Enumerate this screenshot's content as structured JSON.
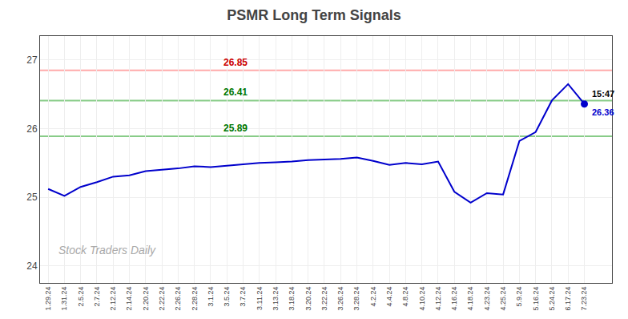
{
  "chart_data": {
    "type": "line",
    "title": "PSMR Long Term Signals",
    "categories": [
      "1.29.24",
      "1.31.24",
      "2.5.24",
      "2.7.24",
      "2.12.24",
      "2.14.24",
      "2.20.24",
      "2.22.24",
      "2.26.24",
      "2.28.24",
      "3.1.24",
      "3.5.24",
      "3.7.24",
      "3.11.24",
      "3.13.24",
      "3.18.24",
      "3.20.24",
      "3.22.24",
      "3.26.24",
      "3.28.24",
      "4.2.24",
      "4.4.24",
      "4.8.24",
      "4.10.24",
      "4.12.24",
      "4.16.24",
      "4.18.24",
      "4.23.24",
      "4.25.24",
      "5.9.24",
      "5.16.24",
      "5.24.24",
      "6.17.24",
      "7.23.24"
    ],
    "values": [
      25.12,
      25.02,
      25.15,
      25.22,
      25.3,
      25.32,
      25.38,
      25.4,
      25.42,
      25.45,
      25.44,
      25.46,
      25.48,
      25.5,
      25.51,
      25.52,
      25.54,
      25.55,
      25.56,
      25.58,
      25.53,
      25.47,
      25.5,
      25.48,
      25.52,
      25.08,
      24.92,
      25.06,
      25.04,
      25.82,
      25.95,
      26.41,
      26.65,
      26.36
    ],
    "color": "#0000cc",
    "ylim": [
      23.75,
      27.35
    ],
    "yticks": [
      24,
      25,
      26,
      27
    ],
    "grid": true,
    "reference_lines": [
      {
        "value": 26.85,
        "label": "26.85",
        "color": "#ffaaaa",
        "label_color": "#cc0000"
      },
      {
        "value": 26.41,
        "label": "26.41",
        "color": "#88cc88",
        "label_color": "#007700"
      },
      {
        "value": 25.89,
        "label": "25.89",
        "color": "#88cc88",
        "label_color": "#007700"
      }
    ],
    "end_labels": [
      {
        "text": "15:47",
        "color": "#000000"
      },
      {
        "text": "26.36",
        "color": "#0000cc"
      }
    ],
    "watermark": {
      "text": "Stock Traders Daily",
      "color": "#aaaaaa"
    }
  }
}
